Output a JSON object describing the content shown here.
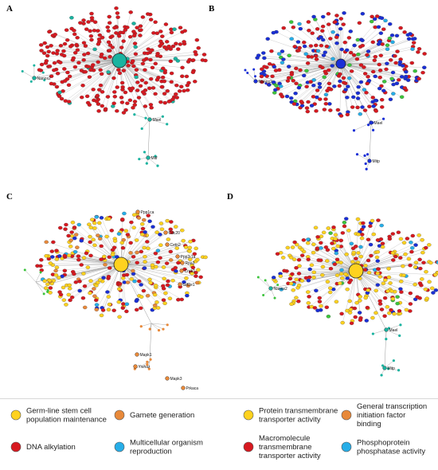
{
  "colors": {
    "hub_teal": "#1ab3a0",
    "dna_alkylation_red": "#d71920",
    "blue": "#1a2fd6",
    "green": "#3cc43c",
    "yellow": "#ffd21f",
    "orange": "#e8893a",
    "cyan": "#27aee8",
    "edge": "#9a9a9a"
  },
  "panels": [
    {
      "letter": "A",
      "hub_color": "teal",
      "scheme": "A",
      "labels": [
        "Nanos2",
        "Mael",
        "Mitf"
      ]
    },
    {
      "letter": "B",
      "hub_color": "blue",
      "scheme": "B",
      "labels": [
        "Nanos2",
        "Mael",
        "Mitp"
      ]
    },
    {
      "letter": "C",
      "hub_color": "yellow",
      "scheme": "C",
      "labels": [
        "Ppp1ca",
        "Cdc20",
        "Cetn2",
        "Ppp2r1a",
        "Rpa3",
        "Creb1",
        "Gtf2e1",
        "Mapk1",
        "Ywhaz",
        "Mapk3",
        "Prkaca"
      ]
    },
    {
      "letter": "D",
      "hub_color": "yellow",
      "scheme": "D",
      "labels": [
        "Nanos2",
        "Mael",
        "Mitp"
      ]
    }
  ],
  "legend": [
    {
      "text_lines": [
        "Germ-line stem cell",
        "population maintenance"
      ],
      "color": "yellow"
    },
    {
      "text_lines": [
        "Gamete generation"
      ],
      "color": "orange"
    },
    {
      "text_lines": [
        "Protein transmembrane",
        "transporter activity"
      ],
      "color": "yellow"
    },
    {
      "text_lines": [
        "General transcription",
        "initiation factor",
        "binding"
      ],
      "color": "orange"
    },
    {
      "text_lines": [
        "DNA alkylation"
      ],
      "color": "red"
    },
    {
      "text_lines": [
        "Multicellular organism",
        "reproduction"
      ],
      "color": "cyan"
    },
    {
      "text_lines": [
        "Macromolecule",
        "transmembrane",
        "transporter activity"
      ],
      "color": "red"
    },
    {
      "text_lines": [
        "Phosphoprotein",
        "phosphatase activity"
      ],
      "color": "cyan"
    }
  ]
}
